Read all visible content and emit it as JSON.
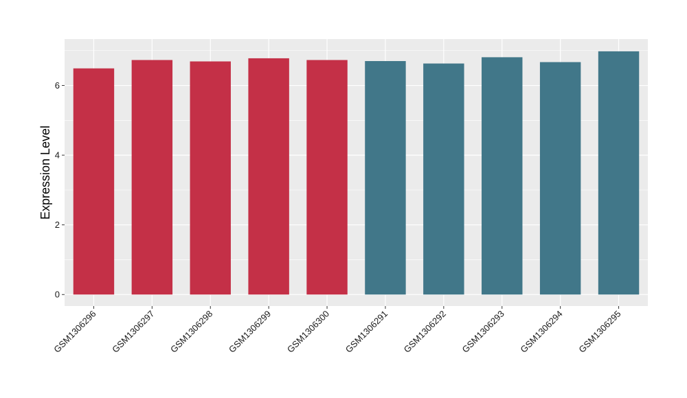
{
  "chart_data": {
    "type": "bar",
    "title": "",
    "xlabel": "",
    "ylabel": "Expression Level",
    "categories": [
      "GSM1306296",
      "GSM1306297",
      "GSM1306298",
      "GSM1306299",
      "GSM1306300",
      "GSM1306291",
      "GSM1306292",
      "GSM1306293",
      "GSM1306294",
      "GSM1306295"
    ],
    "values": [
      6.49,
      6.73,
      6.69,
      6.78,
      6.73,
      6.7,
      6.63,
      6.81,
      6.67,
      6.98
    ],
    "bar_colors": [
      "#C43047",
      "#C43047",
      "#C43047",
      "#C43047",
      "#C43047",
      "#417789",
      "#417789",
      "#417789",
      "#417789",
      "#417789"
    ],
    "ylim": [
      -0.33,
      7.33
    ],
    "yticks": [
      0,
      2,
      4,
      6
    ],
    "grid": true,
    "legend": "none",
    "panel_color": "#EBEBEB",
    "grid_color": "#FFFFFF"
  }
}
